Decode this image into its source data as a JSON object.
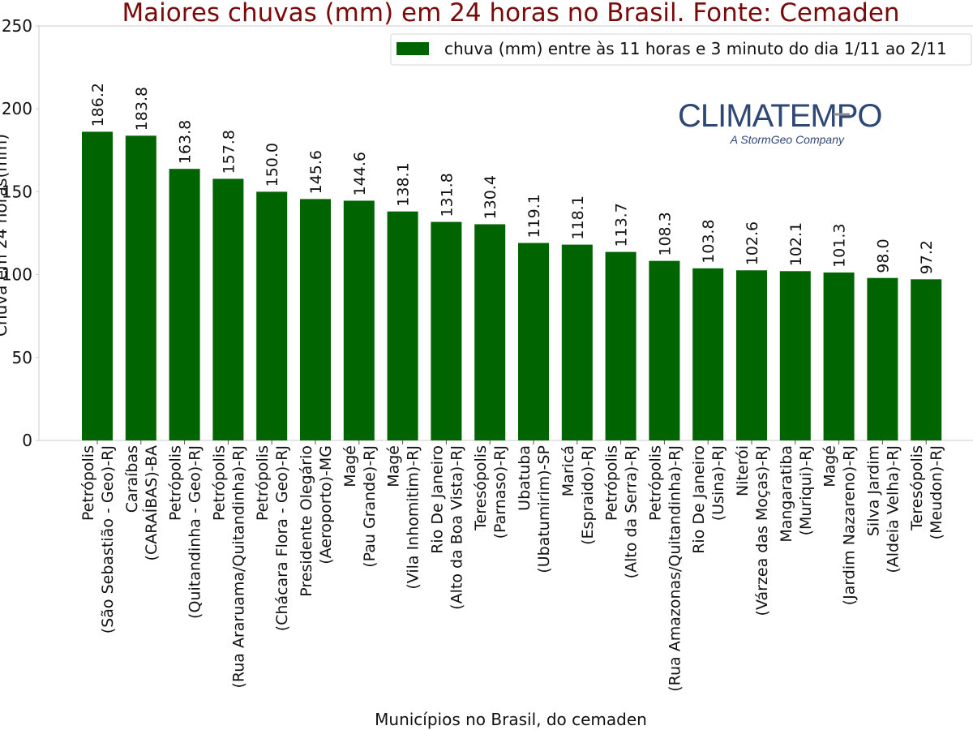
{
  "chart_data": {
    "type": "bar",
    "title": "Maiores chuvas (mm) em 24 horas no Brasil. Fonte: Cemaden",
    "xlabel": "Municípios no Brasil, do cemaden",
    "ylabel": "Chuva em 24 horas(mm)",
    "ylim": [
      0,
      250
    ],
    "yticks": [
      0,
      50,
      100,
      150,
      200,
      250
    ],
    "bar_color": "#006400",
    "title_color": "#7a0a0a",
    "grid": false,
    "legend_position": "top-right",
    "series": [
      {
        "name": "chuva (mm) entre às 11 horas e 3 minuto do dia 1/11 ao 2/11",
        "values": [
          186.2,
          183.8,
          163.8,
          157.8,
          150.0,
          145.6,
          144.6,
          138.1,
          131.8,
          130.4,
          119.1,
          118.1,
          113.7,
          108.3,
          103.8,
          102.6,
          102.1,
          101.3,
          98.0,
          97.2
        ]
      }
    ],
    "data_labels": [
      "186.2",
      "183.8",
      "163.8",
      "157.8",
      "150.0",
      "145.6",
      "144.6",
      "138.1",
      "131.8",
      "130.4",
      "119.1",
      "118.1",
      "113.7",
      "108.3",
      "103.8",
      "102.6",
      "102.1",
      "101.3",
      "98.0",
      "97.2"
    ],
    "categories": [
      [
        "Petrópolis",
        "(São Sebastião - Geo)-RJ"
      ],
      [
        "Caraíbas",
        "(CARAÍBAS)-BA"
      ],
      [
        "Petrópolis",
        "(Quitandinha - Geo)-RJ"
      ],
      [
        "Petrópolis",
        "(Rua Araruama/Quitandinha)-RJ"
      ],
      [
        "Petrópolis",
        "(Chácara Flora - Geo)-RJ"
      ],
      [
        "Presidente Olegário",
        "(Aeroporto)-MG"
      ],
      [
        "Magé",
        "(Pau Grande)-RJ"
      ],
      [
        "Magé",
        "(Vila Inhomitim)-RJ"
      ],
      [
        "Rio De Janeiro",
        "(Alto da Boa Vista)-RJ"
      ],
      [
        "Teresópolis",
        "(Parnaso)-RJ"
      ],
      [
        "Ubatuba",
        "(Ubatumirim)-SP"
      ],
      [
        "Maricá",
        "(Espraido)-RJ"
      ],
      [
        "Petrópolis",
        "(Alto da Serra)-RJ"
      ],
      [
        "Petrópolis",
        "(Rua Amazonas/Quitandinha)-RJ"
      ],
      [
        "Rio De Janeiro",
        "(Usina)-RJ"
      ],
      [
        "Niterói",
        "(Várzea das Moças)-RJ"
      ],
      [
        "Mangaratiba",
        "(Muriqui)-RJ"
      ],
      [
        "Magé",
        "(Jardim Nazareno)-RJ"
      ],
      [
        "Silva Jardim",
        "(Aldeia Velha)-RJ"
      ],
      [
        "Teresópolis",
        "(Meudon)-RJ"
      ]
    ]
  },
  "logo": {
    "name": "CLIMATEMPO",
    "tagline": "A StormGeo Company",
    "color": "#2f4775"
  }
}
